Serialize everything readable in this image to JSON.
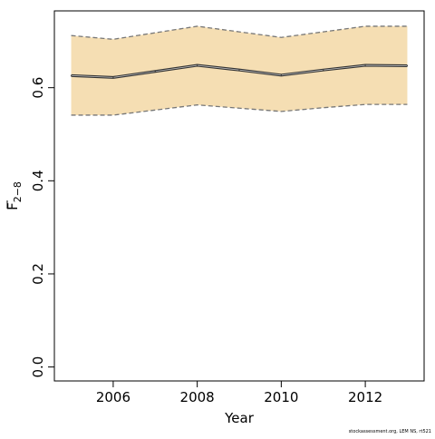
{
  "chart_data": {
    "type": "line",
    "xlabel": "Year",
    "ylabel_main": "F",
    "ylabel_subscript": "2−8",
    "ylabel_overline": true,
    "credit": "stockassessment.org, LEM NS, rt521",
    "xlim": [
      2004.6,
      2013.4
    ],
    "ylim": [
      -0.03,
      0.765
    ],
    "x_ticks": [
      2006,
      2008,
      2010,
      2012
    ],
    "x_tick_labels": [
      "2006",
      "2008",
      "2010",
      "2012"
    ],
    "y_ticks": [
      0.0,
      0.2,
      0.4,
      0.6
    ],
    "y_tick_labels": [
      "0.0",
      "0.2",
      "0.4",
      "0.6"
    ],
    "x": [
      2005,
      2006,
      2007,
      2008,
      2009,
      2010,
      2011,
      2012,
      2013
    ],
    "estimate": [
      0.626,
      0.622,
      0.635,
      0.648,
      0.638,
      0.627,
      0.638,
      0.648,
      0.647
    ],
    "lower": [
      0.541,
      0.541,
      0.552,
      0.563,
      0.556,
      0.549,
      0.557,
      0.564,
      0.564
    ],
    "upper": [
      0.712,
      0.704,
      0.718,
      0.732,
      0.72,
      0.708,
      0.72,
      0.732,
      0.732
    ],
    "grid": false,
    "colors": {
      "band_fill": "#f5deb3",
      "bound_line": "#777777",
      "estimate_line": "#333333",
      "axis": "#000000"
    }
  }
}
